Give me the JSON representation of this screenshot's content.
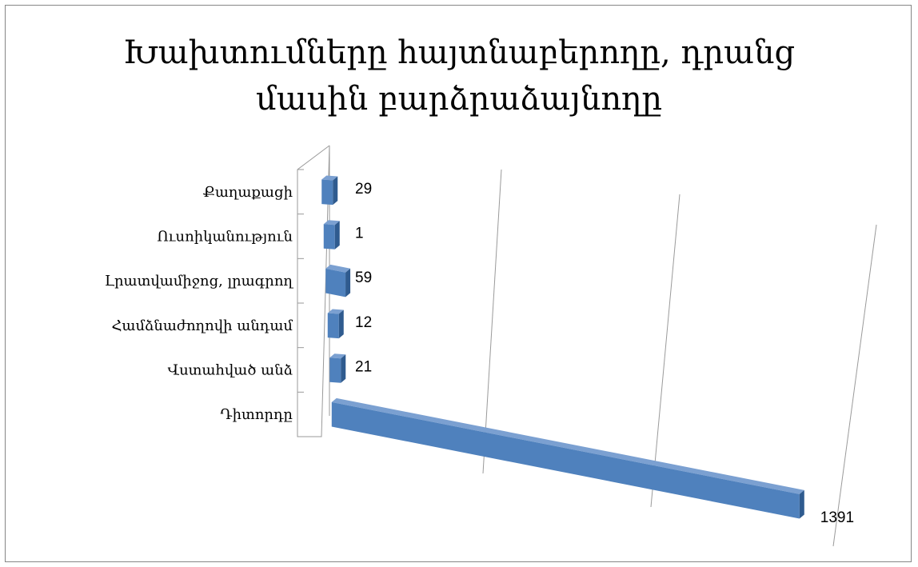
{
  "chart_data": {
    "type": "bar",
    "orientation": "horizontal",
    "style": "3d",
    "title": [
      "Խախտումները հայտնաբերողը, դրանց",
      "մասին բարձրաձայնողը"
    ],
    "categories": [
      "Քաղաքացի",
      "Ուսոիկանություն",
      "Լրատվամիջոց, լրագրող",
      "Համձնաժողովի անդամ",
      "Վստահված անձ",
      "Դիտորդը"
    ],
    "values": [
      29,
      1,
      59,
      12,
      21,
      1391
    ],
    "data_labels": [
      "29",
      "1",
      "59",
      "12",
      "21",
      "1391"
    ],
    "xlim": [
      0,
      1391
    ],
    "legend": "none",
    "grid": true,
    "colors": {
      "bar_front": "#4f81bd",
      "bar_top": "#7ba0d1",
      "bar_side": "#2f5b8f"
    }
  }
}
